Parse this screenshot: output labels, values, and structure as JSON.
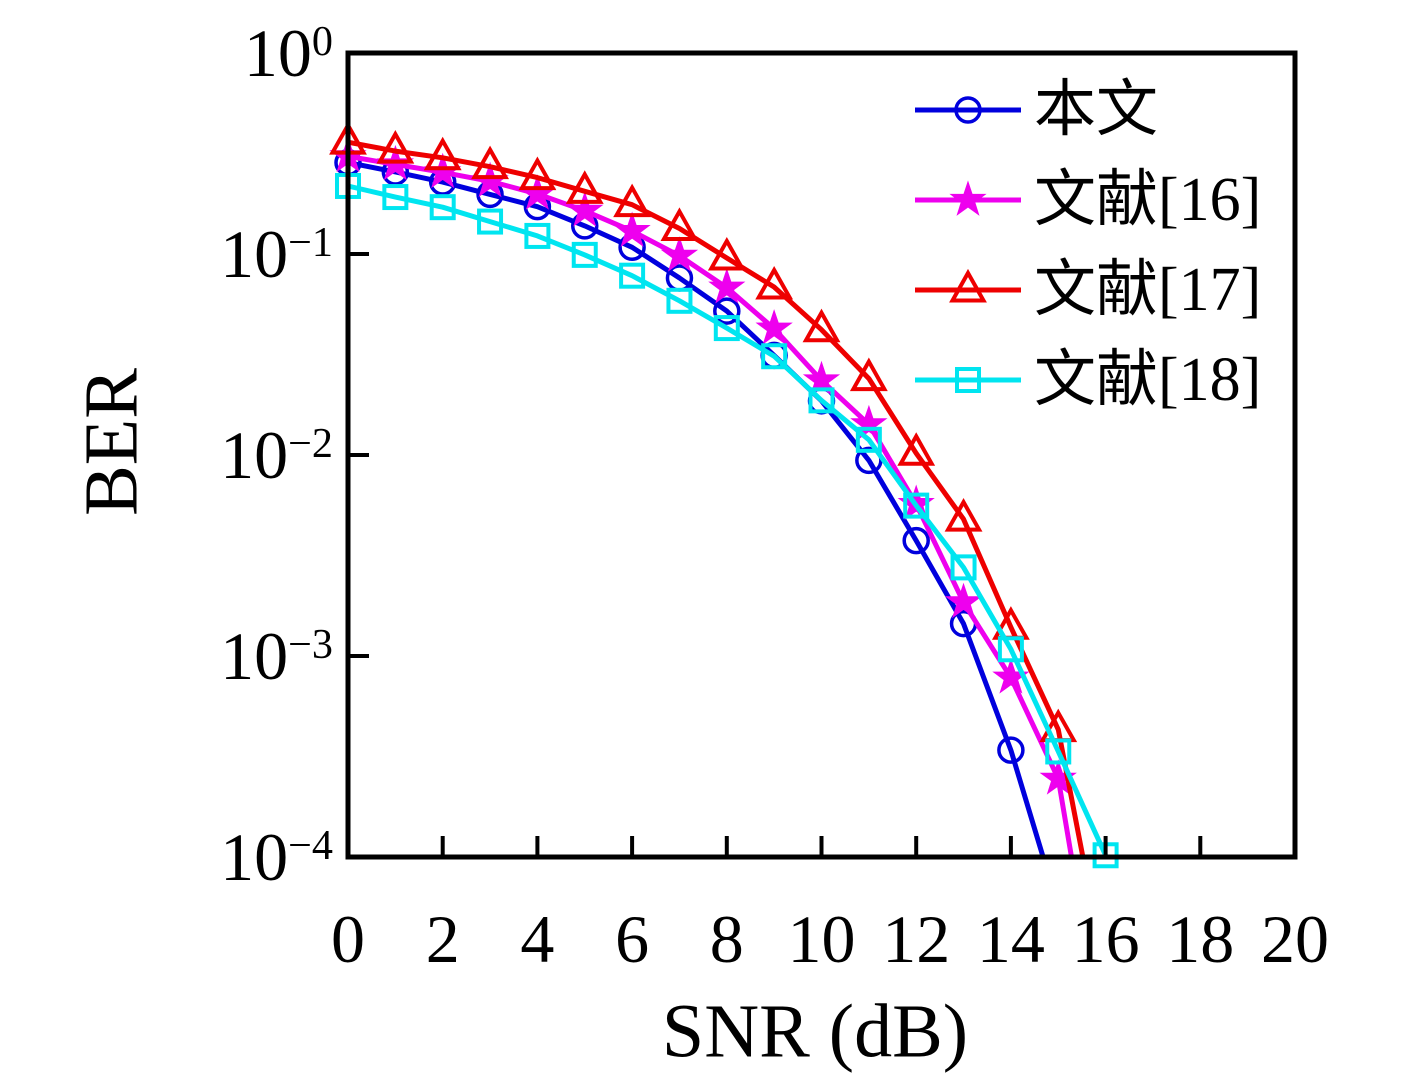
{
  "figure": {
    "background": "#ffffff",
    "frame_color": "#000000"
  },
  "axis": {
    "xlabel": "SNR (dB)",
    "ylabel": "BER",
    "x_ticks": [
      0,
      2,
      4,
      6,
      8,
      10,
      12,
      14,
      16,
      18,
      20
    ],
    "x_tick_labels": [
      "0",
      "2",
      "4",
      "6",
      "8",
      "10",
      "12",
      "14",
      "16",
      "18",
      "20"
    ],
    "y_tick_exponents": [
      0,
      -1,
      -2,
      -3,
      -4
    ],
    "y_tick_labels": [
      "10^0",
      "10^-1",
      "10^-2",
      "10^-3",
      "10^-4"
    ]
  },
  "chart_data": {
    "type": "line",
    "title": "",
    "xlabel": "SNR (dB)",
    "ylabel": "BER",
    "xlim": [
      0,
      20
    ],
    "ylim": [
      0.0001,
      1
    ],
    "y_scale": "log",
    "grid": false,
    "legend_position": "top-right-inside",
    "series": [
      {
        "name": "本文",
        "color": "#0000dd",
        "marker": "circle",
        "marker_fill": "open",
        "x": [
          0,
          1,
          2,
          3,
          4,
          5,
          6,
          7,
          8,
          9,
          10,
          11,
          12,
          13,
          14,
          14.68
        ],
        "y": [
          0.285,
          0.256,
          0.228,
          0.198,
          0.172,
          0.138,
          0.108,
          0.076,
          0.052,
          0.0313,
          0.0186,
          0.0094,
          0.00375,
          0.00145,
          0.00034,
          0.0001
        ]
      },
      {
        "name": "文献[16]",
        "color": "#ee00ee",
        "marker": "star",
        "marker_fill": "filled",
        "x": [
          0,
          1,
          2,
          3,
          4,
          5,
          6,
          7,
          8,
          9,
          10,
          11,
          12,
          13,
          14,
          15,
          15.28
        ],
        "y": [
          0.306,
          0.279,
          0.255,
          0.23,
          0.199,
          0.164,
          0.13,
          0.098,
          0.068,
          0.0425,
          0.0235,
          0.0142,
          0.0057,
          0.00185,
          0.00078,
          0.000245,
          0.0001
        ]
      },
      {
        "name": "文献[17]",
        "color": "#ee0000",
        "marker": "triangle",
        "marker_fill": "open",
        "x": [
          0,
          1,
          2,
          3,
          4,
          5,
          6,
          7,
          8,
          9,
          10,
          11,
          12,
          13,
          14,
          15,
          15.52
        ],
        "y": [
          0.36,
          0.325,
          0.301,
          0.272,
          0.24,
          0.205,
          0.176,
          0.134,
          0.0955,
          0.0685,
          0.042,
          0.024,
          0.0102,
          0.0048,
          0.00139,
          0.00043,
          0.0001
        ]
      },
      {
        "name": "文献[18]",
        "color": "#00e5f0",
        "marker": "square",
        "marker_fill": "open",
        "x": [
          0,
          1,
          2,
          3,
          4,
          5,
          6,
          7,
          8,
          9,
          10,
          11,
          12,
          13,
          14,
          15,
          16
        ],
        "y": [
          0.218,
          0.192,
          0.171,
          0.145,
          0.123,
          0.099,
          0.078,
          0.0585,
          0.0428,
          0.031,
          0.0187,
          0.0119,
          0.0056,
          0.00276,
          0.00108,
          0.000335,
          0.000102
        ]
      }
    ]
  }
}
